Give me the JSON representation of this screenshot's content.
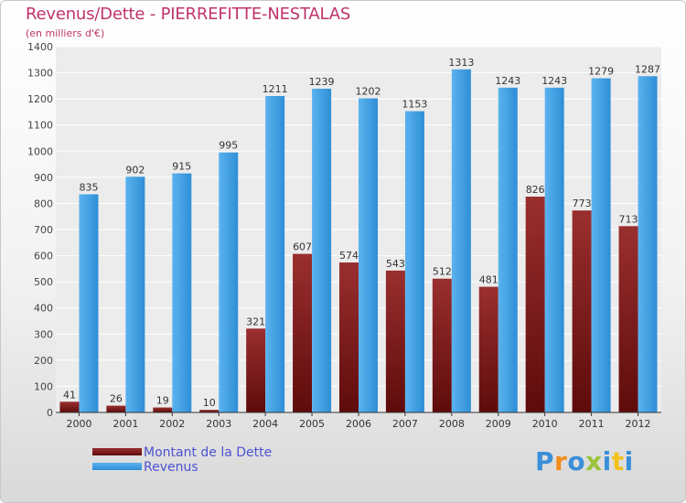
{
  "header": {
    "title": "Revenus/Dette - PIERREFITTE-NESTALAS",
    "subtitle": "(en milliers d'€)"
  },
  "colors": {
    "dette": "#8b1a1a",
    "revenus": "#3a9ee0",
    "title": "#c0336b",
    "legend_text": "#4b53d2"
  },
  "chart_data": {
    "type": "bar",
    "categories": [
      "2000",
      "2001",
      "2002",
      "2003",
      "2004",
      "2005",
      "2006",
      "2007",
      "2008",
      "2009",
      "2010",
      "2011",
      "2012"
    ],
    "series": [
      {
        "name": "Montant de la Dette",
        "values": [
          41,
          26,
          19,
          10,
          321,
          607,
          574,
          543,
          512,
          481,
          826,
          773,
          713
        ]
      },
      {
        "name": "Revenus",
        "values": [
          835,
          902,
          915,
          995,
          1211,
          1239,
          1202,
          1153,
          1313,
          1243,
          1243,
          1279,
          1287
        ]
      }
    ],
    "yticks": [
      "0",
      "100",
      "200",
      "300",
      "400",
      "500",
      "600",
      "700",
      "800",
      "900",
      "1000",
      "1100",
      "1200",
      "1300",
      "1400"
    ],
    "ylim": [
      0,
      1400
    ],
    "grid": true,
    "legend_position": "bottom-left"
  },
  "legend": {
    "items": [
      {
        "label": "Montant de la Dette"
      },
      {
        "label": "Revenus"
      }
    ]
  },
  "logo": {
    "letters": [
      "P",
      "r",
      "o",
      "x",
      "i",
      "t",
      "i"
    ],
    "letter_colors": [
      "#3a8fd8",
      "#f28c1b",
      "#3a8fd8",
      "#9ac43a",
      "#3a8fd8",
      "#f2c21b",
      "#3a8fd8"
    ]
  }
}
